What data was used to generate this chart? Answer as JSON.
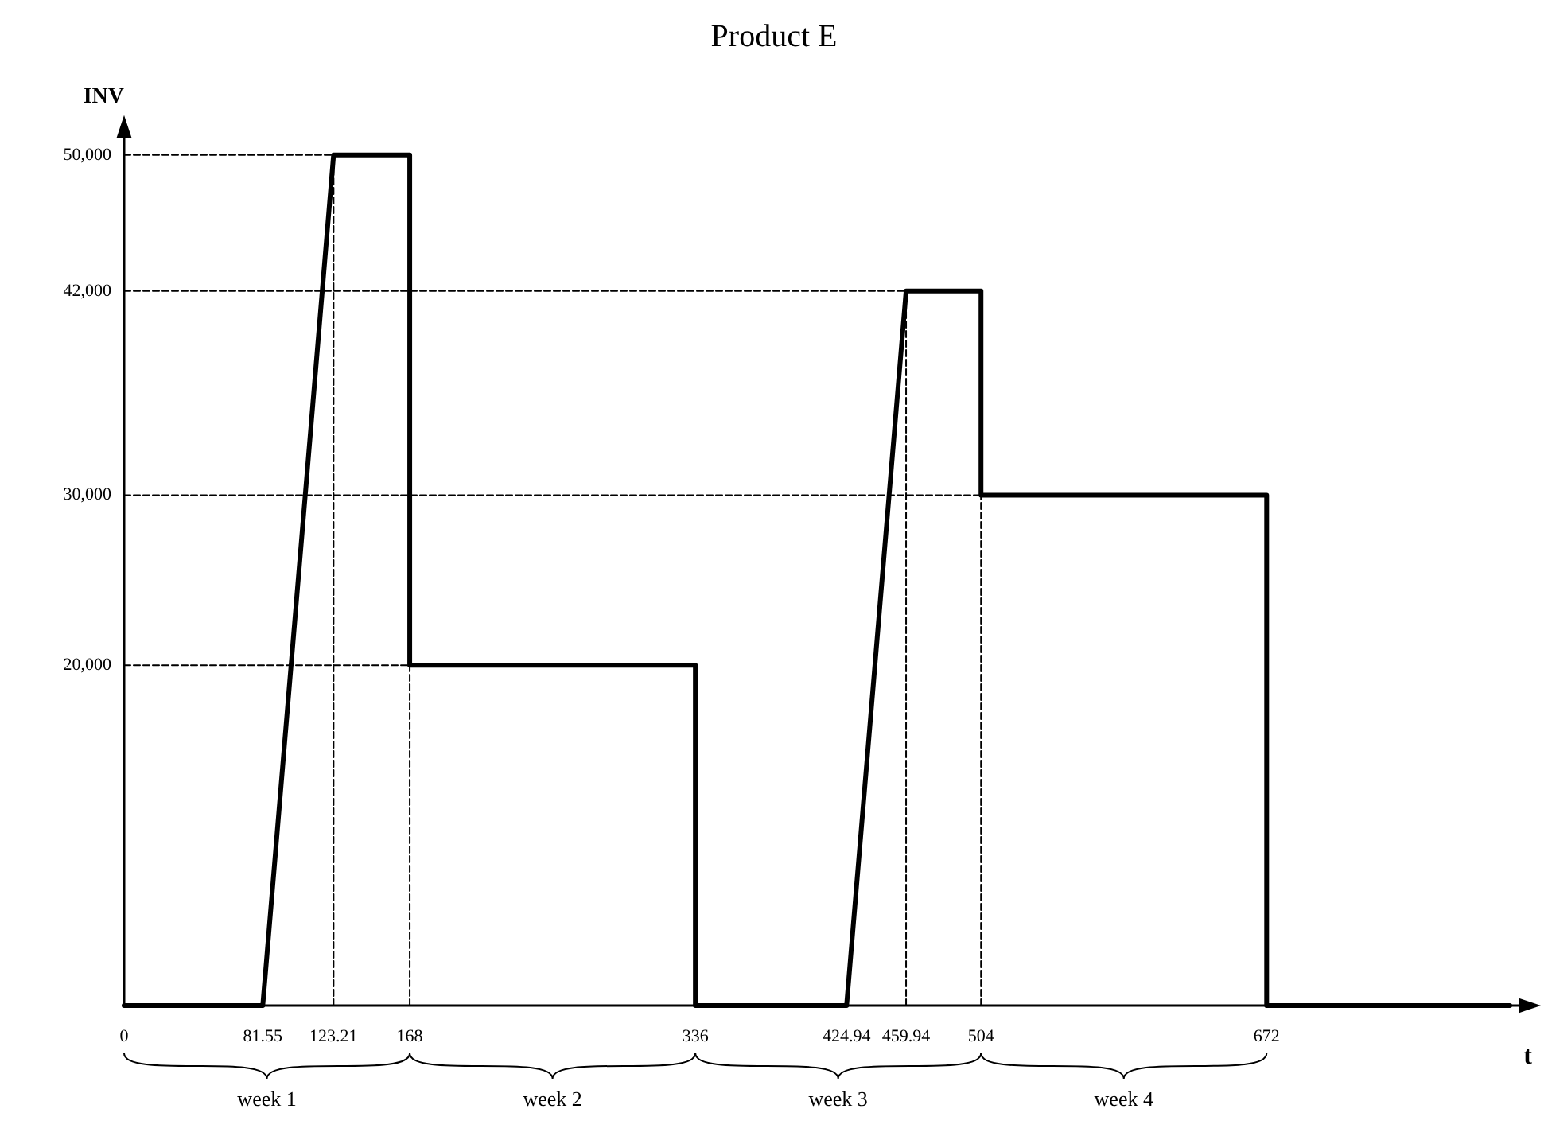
{
  "chart_data": {
    "type": "line",
    "title": "Product E",
    "ylabel": "INV",
    "xlabel": "t",
    "xlim": [
      0,
      830
    ],
    "ylim": [
      0,
      52000
    ],
    "xticks": [
      0,
      81.55,
      123.21,
      168,
      336,
      424.94,
      459.94,
      504,
      672
    ],
    "yticks": [
      {
        "value": 20000,
        "label": "20,000"
      },
      {
        "value": 30000,
        "label": "30,000"
      },
      {
        "value": 42000,
        "label": "42,000"
      },
      {
        "value": 50000,
        "label": "50,000"
      }
    ],
    "series": [
      {
        "color": "#000000",
        "line_style": "solid",
        "x": [
          0,
          81.55,
          123.21,
          168,
          168,
          336,
          336,
          424.94,
          459.94,
          504,
          504,
          672,
          672,
          815
        ],
        "values": [
          0,
          0,
          50000,
          50000,
          20000,
          20000,
          0,
          0,
          42000,
          42000,
          30000,
          30000,
          0,
          0
        ]
      },
      {
        "color": "#000000",
        "line_style": "dashed",
        "x": [
          0,
          168
        ],
        "values": [
          50000,
          50000
        ]
      },
      {
        "color": "#000000",
        "line_style": "dashed",
        "x": [
          0,
          504
        ],
        "values": [
          42000,
          42000
        ]
      },
      {
        "color": "#000000",
        "line_style": "dashed",
        "x": [
          0,
          672
        ],
        "values": [
          30000,
          30000
        ]
      },
      {
        "color": "#000000",
        "line_style": "dashed",
        "x": [
          0,
          336
        ],
        "values": [
          20000,
          20000
        ]
      },
      {
        "color": "#000000",
        "line_style": "dashed",
        "x": [
          123.21,
          123.21
        ],
        "values": [
          0,
          50000
        ]
      },
      {
        "color": "#000000",
        "line_style": "dashed",
        "x": [
          168,
          168
        ],
        "values": [
          0,
          50000
        ]
      },
      {
        "color": "#000000",
        "line_style": "dashed",
        "x": [
          459.94,
          459.94
        ],
        "values": [
          0,
          42000
        ]
      },
      {
        "color": "#000000",
        "line_style": "dashed",
        "x": [
          504,
          504
        ],
        "values": [
          0,
          42000
        ]
      }
    ],
    "annotations": [
      "week 1",
      "week 2",
      "week 3",
      "week 4"
    ],
    "marker": "none",
    "grid": false
  }
}
